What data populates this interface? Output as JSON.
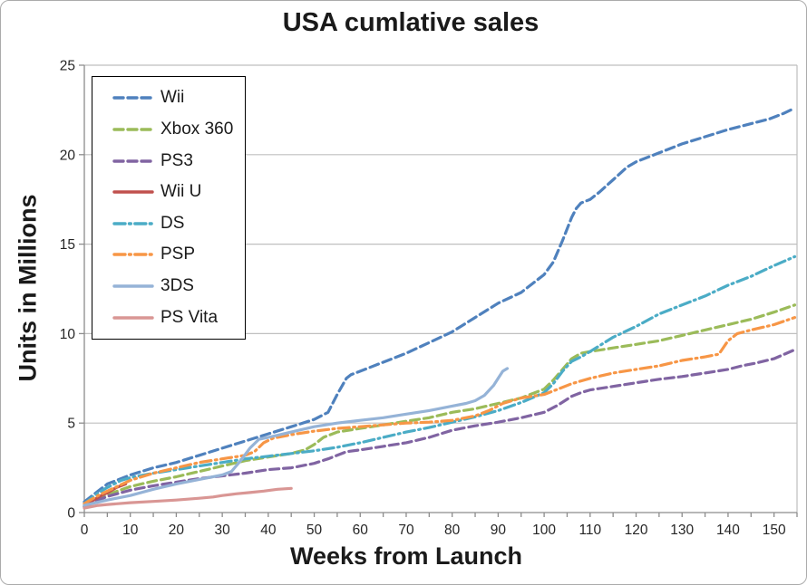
{
  "window": {
    "background": "#ffffff",
    "border_color": "#ababab"
  },
  "styles": {
    "grid_color": "#bfbfbf",
    "axis_color": "#8c8c8c",
    "tick_label_color": "#262626",
    "legend_border": "#000000"
  },
  "chart_data": {
    "type": "line",
    "title": "USA cumlative sales",
    "xlabel": "Weeks from Launch",
    "ylabel": "Units in Millions",
    "xlim": [
      0,
      155
    ],
    "ylim": [
      0,
      25
    ],
    "xticks": [
      0,
      10,
      20,
      30,
      40,
      50,
      60,
      70,
      80,
      90,
      100,
      110,
      120,
      130,
      140,
      150
    ],
    "x_minor_step": 5,
    "yticks": [
      0,
      5,
      10,
      15,
      20,
      25
    ],
    "grid": "horizontal",
    "legend_position": "upper-left-inside",
    "series": [
      {
        "id": "wii",
        "name": "Wii",
        "color": "#4F81BD",
        "style": "dashed",
        "points": [
          [
            0,
            0.6
          ],
          [
            3,
            1.2
          ],
          [
            5,
            1.6
          ],
          [
            8,
            1.9
          ],
          [
            10,
            2.1
          ],
          [
            15,
            2.5
          ],
          [
            20,
            2.8
          ],
          [
            25,
            3.2
          ],
          [
            30,
            3.6
          ],
          [
            35,
            4.0
          ],
          [
            40,
            4.4
          ],
          [
            45,
            4.8
          ],
          [
            50,
            5.2
          ],
          [
            53,
            5.6
          ],
          [
            55,
            6.6
          ],
          [
            57,
            7.5
          ],
          [
            58,
            7.7
          ],
          [
            60,
            7.9
          ],
          [
            65,
            8.4
          ],
          [
            70,
            8.9
          ],
          [
            75,
            9.5
          ],
          [
            80,
            10.1
          ],
          [
            85,
            10.9
          ],
          [
            90,
            11.7
          ],
          [
            95,
            12.3
          ],
          [
            100,
            13.3
          ],
          [
            102,
            14.0
          ],
          [
            104,
            15.2
          ],
          [
            106,
            16.5
          ],
          [
            107,
            17.0
          ],
          [
            108,
            17.3
          ],
          [
            110,
            17.5
          ],
          [
            112,
            17.9
          ],
          [
            115,
            18.6
          ],
          [
            118,
            19.3
          ],
          [
            120,
            19.6
          ],
          [
            125,
            20.1
          ],
          [
            130,
            20.6
          ],
          [
            135,
            21.0
          ],
          [
            140,
            21.4
          ],
          [
            143,
            21.6
          ],
          [
            146,
            21.8
          ],
          [
            149,
            22.0
          ],
          [
            152,
            22.3
          ],
          [
            154.5,
            22.6
          ]
        ]
      },
      {
        "id": "xbox-360",
        "name": "Xbox 360",
        "color": "#9BBB59",
        "style": "dashed",
        "points": [
          [
            0,
            0.35
          ],
          [
            3,
            0.8
          ],
          [
            5,
            1.0
          ],
          [
            10,
            1.45
          ],
          [
            15,
            1.75
          ],
          [
            20,
            2.0
          ],
          [
            25,
            2.3
          ],
          [
            30,
            2.6
          ],
          [
            35,
            2.9
          ],
          [
            40,
            3.1
          ],
          [
            45,
            3.3
          ],
          [
            48,
            3.5
          ],
          [
            50,
            3.8
          ],
          [
            52,
            4.2
          ],
          [
            55,
            4.5
          ],
          [
            60,
            4.7
          ],
          [
            65,
            4.9
          ],
          [
            70,
            5.1
          ],
          [
            75,
            5.3
          ],
          [
            80,
            5.6
          ],
          [
            85,
            5.8
          ],
          [
            90,
            6.1
          ],
          [
            95,
            6.4
          ],
          [
            100,
            6.9
          ],
          [
            102,
            7.4
          ],
          [
            104,
            8.0
          ],
          [
            106,
            8.6
          ],
          [
            108,
            8.9
          ],
          [
            110,
            9.0
          ],
          [
            115,
            9.2
          ],
          [
            120,
            9.4
          ],
          [
            125,
            9.6
          ],
          [
            130,
            9.9
          ],
          [
            135,
            10.2
          ],
          [
            140,
            10.5
          ],
          [
            145,
            10.8
          ],
          [
            150,
            11.2
          ],
          [
            154.5,
            11.6
          ]
        ]
      },
      {
        "id": "ps3",
        "name": "PS3",
        "color": "#8064A2",
        "style": "dashed",
        "points": [
          [
            0,
            0.3
          ],
          [
            3,
            0.7
          ],
          [
            5,
            0.9
          ],
          [
            10,
            1.25
          ],
          [
            15,
            1.5
          ],
          [
            20,
            1.7
          ],
          [
            25,
            1.9
          ],
          [
            30,
            2.05
          ],
          [
            35,
            2.2
          ],
          [
            40,
            2.4
          ],
          [
            45,
            2.5
          ],
          [
            50,
            2.75
          ],
          [
            53,
            3.0
          ],
          [
            55,
            3.2
          ],
          [
            57,
            3.4
          ],
          [
            60,
            3.5
          ],
          [
            65,
            3.7
          ],
          [
            70,
            3.9
          ],
          [
            75,
            4.2
          ],
          [
            80,
            4.6
          ],
          [
            85,
            4.85
          ],
          [
            90,
            5.05
          ],
          [
            95,
            5.3
          ],
          [
            100,
            5.6
          ],
          [
            103,
            6.0
          ],
          [
            106,
            6.5
          ],
          [
            108,
            6.7
          ],
          [
            110,
            6.85
          ],
          [
            115,
            7.05
          ],
          [
            120,
            7.25
          ],
          [
            125,
            7.45
          ],
          [
            130,
            7.6
          ],
          [
            135,
            7.8
          ],
          [
            140,
            8.0
          ],
          [
            143,
            8.2
          ],
          [
            146,
            8.35
          ],
          [
            150,
            8.6
          ],
          [
            154.5,
            9.1
          ]
        ]
      },
      {
        "id": "wii-u",
        "name": "Wii U",
        "color": "#C0504D",
        "style": "solid",
        "points": [
          [
            0,
            0.4
          ],
          [
            1,
            0.55
          ],
          [
            2,
            0.7
          ],
          [
            3,
            0.85
          ],
          [
            4,
            1.0
          ],
          [
            5,
            1.1
          ],
          [
            6,
            1.25
          ],
          [
            7,
            1.4
          ],
          [
            8,
            1.5
          ],
          [
            9,
            1.6
          ]
        ]
      },
      {
        "id": "ds",
        "name": "DS",
        "color": "#4BACC6",
        "style": "dashdot",
        "points": [
          [
            0,
            0.5
          ],
          [
            3,
            1.1
          ],
          [
            5,
            1.4
          ],
          [
            8,
            1.8
          ],
          [
            10,
            1.95
          ],
          [
            15,
            2.2
          ],
          [
            20,
            2.4
          ],
          [
            25,
            2.6
          ],
          [
            30,
            2.8
          ],
          [
            35,
            3.0
          ],
          [
            40,
            3.15
          ],
          [
            45,
            3.3
          ],
          [
            50,
            3.45
          ],
          [
            55,
            3.65
          ],
          [
            60,
            3.9
          ],
          [
            65,
            4.2
          ],
          [
            70,
            4.5
          ],
          [
            75,
            4.75
          ],
          [
            80,
            5.05
          ],
          [
            85,
            5.35
          ],
          [
            90,
            5.7
          ],
          [
            95,
            6.15
          ],
          [
            100,
            6.7
          ],
          [
            102,
            7.2
          ],
          [
            104,
            7.9
          ],
          [
            106,
            8.45
          ],
          [
            108,
            8.7
          ],
          [
            110,
            9.0
          ],
          [
            115,
            9.8
          ],
          [
            120,
            10.4
          ],
          [
            125,
            11.1
          ],
          [
            130,
            11.6
          ],
          [
            135,
            12.1
          ],
          [
            140,
            12.7
          ],
          [
            145,
            13.2
          ],
          [
            150,
            13.8
          ],
          [
            154.5,
            14.3
          ]
        ]
      },
      {
        "id": "psp",
        "name": "PSP",
        "color": "#F79646",
        "style": "dashdot",
        "points": [
          [
            0,
            0.5
          ],
          [
            3,
            0.95
          ],
          [
            5,
            1.2
          ],
          [
            10,
            1.8
          ],
          [
            15,
            2.2
          ],
          [
            20,
            2.5
          ],
          [
            25,
            2.8
          ],
          [
            30,
            3.0
          ],
          [
            35,
            3.2
          ],
          [
            37,
            3.4
          ],
          [
            39,
            3.9
          ],
          [
            41,
            4.15
          ],
          [
            45,
            4.35
          ],
          [
            50,
            4.55
          ],
          [
            55,
            4.7
          ],
          [
            60,
            4.8
          ],
          [
            65,
            4.9
          ],
          [
            70,
            5.0
          ],
          [
            75,
            5.05
          ],
          [
            80,
            5.15
          ],
          [
            85,
            5.4
          ],
          [
            88,
            5.7
          ],
          [
            91,
            6.1
          ],
          [
            95,
            6.4
          ],
          [
            100,
            6.6
          ],
          [
            103,
            6.9
          ],
          [
            106,
            7.2
          ],
          [
            110,
            7.5
          ],
          [
            115,
            7.8
          ],
          [
            120,
            8.0
          ],
          [
            125,
            8.2
          ],
          [
            130,
            8.5
          ],
          [
            135,
            8.7
          ],
          [
            138,
            8.85
          ],
          [
            140,
            9.6
          ],
          [
            142,
            10.0
          ],
          [
            145,
            10.2
          ],
          [
            150,
            10.5
          ],
          [
            154.5,
            10.9
          ]
        ]
      },
      {
        "id": "3ds",
        "name": "3DS",
        "color": "#95B3D7",
        "style": "solid",
        "points": [
          [
            0,
            0.4
          ],
          [
            5,
            0.7
          ],
          [
            10,
            0.95
          ],
          [
            15,
            1.3
          ],
          [
            20,
            1.6
          ],
          [
            25,
            1.85
          ],
          [
            30,
            2.1
          ],
          [
            32,
            2.3
          ],
          [
            34,
            2.9
          ],
          [
            36,
            3.6
          ],
          [
            38,
            4.1
          ],
          [
            40,
            4.2
          ],
          [
            45,
            4.5
          ],
          [
            50,
            4.8
          ],
          [
            55,
            5.0
          ],
          [
            60,
            5.15
          ],
          [
            65,
            5.3
          ],
          [
            70,
            5.5
          ],
          [
            75,
            5.7
          ],
          [
            80,
            5.95
          ],
          [
            83,
            6.1
          ],
          [
            85,
            6.25
          ],
          [
            87,
            6.55
          ],
          [
            89,
            7.1
          ],
          [
            90,
            7.5
          ],
          [
            91,
            7.9
          ],
          [
            92,
            8.05
          ]
        ]
      },
      {
        "id": "ps-vita",
        "name": "PS Vita",
        "color": "#D99694",
        "style": "solid",
        "points": [
          [
            0,
            0.25
          ],
          [
            3,
            0.4
          ],
          [
            5,
            0.45
          ],
          [
            10,
            0.55
          ],
          [
            15,
            0.62
          ],
          [
            20,
            0.7
          ],
          [
            25,
            0.8
          ],
          [
            28,
            0.87
          ],
          [
            30,
            0.95
          ],
          [
            33,
            1.05
          ],
          [
            36,
            1.12
          ],
          [
            39,
            1.2
          ],
          [
            42,
            1.3
          ],
          [
            45,
            1.35
          ]
        ]
      }
    ]
  }
}
